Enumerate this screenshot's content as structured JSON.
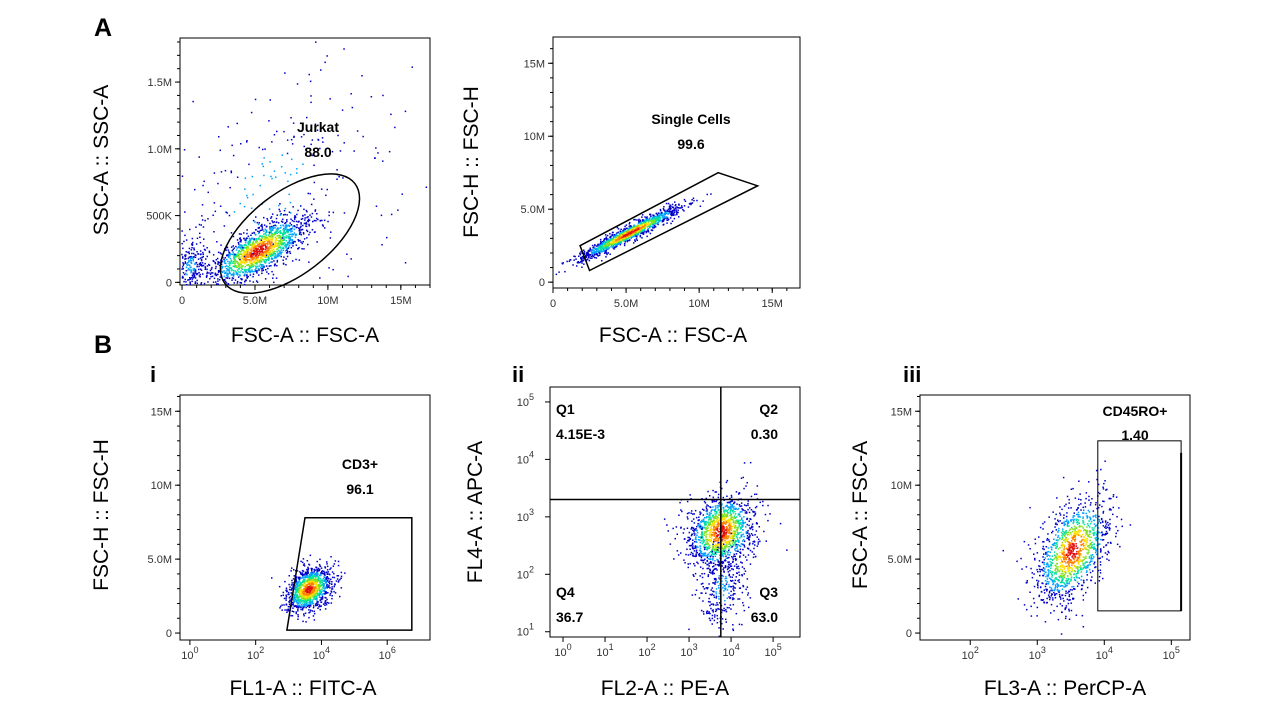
{
  "panels": {
    "A": "A",
    "B": "B",
    "i": "i",
    "ii": "ii",
    "iii": "iii"
  },
  "chart_data": [
    {
      "id": "A1",
      "type": "scatter",
      "xlabel": "FSC-A :: FSC-A",
      "ylabel": "SSC-A :: SSC-A",
      "x_scale": "linear",
      "y_scale": "linear",
      "x_unit": "M",
      "y_unit": "M",
      "xlim": [
        -0.14,
        17.0
      ],
      "ylim": [
        -0.02,
        1.83
      ],
      "xticks": [
        {
          "v": 0,
          "t": "0"
        },
        {
          "v": 5,
          "t": "5.0M"
        },
        {
          "v": 10,
          "t": "10M"
        },
        {
          "v": 15,
          "t": "15M"
        }
      ],
      "yticks": [
        {
          "v": 0,
          "t": "0"
        },
        {
          "v": 0.5,
          "t": "500K"
        },
        {
          "v": 1.0,
          "t": "1.0M"
        },
        {
          "v": 1.5,
          "t": "1.5M"
        }
      ],
      "gate": {
        "type": "ellipse",
        "axis_end_1": [
          2.95,
          -0.01
        ],
        "axis_end_2": [
          11.85,
          0.74
        ],
        "minor_ratio": 0.5,
        "name": "Jurkat",
        "value": "88.0"
      },
      "populations": [
        {
          "center": [
            5.2,
            0.24
          ],
          "sd": [
            1.7,
            0.13
          ],
          "corr": 0.72,
          "n": 1500
        },
        {
          "center": [
            0.5,
            0.12
          ],
          "sd": [
            0.6,
            0.12
          ],
          "corr": 0.3,
          "n": 250
        },
        {
          "center": [
            6.0,
            0.7
          ],
          "sd": [
            4.5,
            0.45
          ],
          "corr": 0.3,
          "n": 250
        }
      ]
    },
    {
      "id": "A2",
      "type": "scatter",
      "xlabel": "FSC-A :: FSC-A",
      "ylabel": "FSC-H :: FSC-H",
      "x_scale": "linear",
      "y_scale": "linear",
      "x_unit": "M",
      "y_unit": "M",
      "xlim": [
        0,
        16.9
      ],
      "ylim": [
        -0.4,
        16.8
      ],
      "xticks": [
        {
          "v": 0,
          "t": "0"
        },
        {
          "v": 5,
          "t": "5.0M"
        },
        {
          "v": 10,
          "t": "10M"
        },
        {
          "v": 15,
          "t": "15M"
        }
      ],
      "yticks": [
        {
          "v": 0,
          "t": "0"
        },
        {
          "v": 5,
          "t": "5.0M"
        },
        {
          "v": 10,
          "t": "10M"
        },
        {
          "v": 15,
          "t": "15M"
        }
      ],
      "gate": {
        "type": "polygon",
        "points": [
          [
            1.85,
            2.5
          ],
          [
            11.3,
            7.5
          ],
          [
            14.0,
            6.6
          ],
          [
            2.5,
            0.8
          ]
        ],
        "name": "Single Cells",
        "value": "99.6"
      },
      "populations": [
        {
          "center": [
            5.2,
            3.4
          ],
          "sd": [
            1.8,
            0.95
          ],
          "corr": 0.96,
          "n": 1200
        }
      ]
    },
    {
      "id": "Bi",
      "type": "scatter",
      "xlabel": "FL1-A :: FITC-A",
      "ylabel": "FSC-H :: FSC-H",
      "x_scale": "log",
      "y_scale": "linear",
      "y_unit": "M",
      "xlim": [
        0.5,
        20000000
      ],
      "ylim": [
        -0.47,
        16.1
      ],
      "xticks": [
        {
          "v": 1,
          "t": "10",
          "sup": "0"
        },
        {
          "v": 100,
          "t": "10",
          "sup": "2"
        },
        {
          "v": 10000,
          "t": "10",
          "sup": "4"
        },
        {
          "v": 1000000,
          "t": "10",
          "sup": "6"
        }
      ],
      "yticks": [
        {
          "v": 0,
          "t": "0"
        },
        {
          "v": 5,
          "t": "5.0M"
        },
        {
          "v": 10,
          "t": "10M"
        },
        {
          "v": 15,
          "t": "15M"
        }
      ],
      "gate": {
        "type": "polygon",
        "points": [
          [
            3160,
            7.8
          ],
          [
            5600000,
            7.8
          ],
          [
            5600000,
            0.2
          ],
          [
            890,
            0.2
          ]
        ],
        "name": "CD3+",
        "value": "96.1"
      },
      "populations": [
        {
          "center": [
            4000,
            3.0
          ],
          "sd_log10": 0.35,
          "sd": [
            0,
            0.75
          ],
          "corr": 0.35,
          "n": 1100
        }
      ]
    },
    {
      "id": "Bii",
      "type": "scatter",
      "xlabel": "FL2-A :: PE-A",
      "ylabel": "FL4-A :: APC-A",
      "x_scale": "log",
      "y_scale": "log",
      "xlim": [
        0.49,
        437000
      ],
      "ylim": [
        8.1,
        182000
      ],
      "xticks": [
        {
          "v": 1,
          "t": "10",
          "sup": "0"
        },
        {
          "v": 10,
          "t": "10",
          "sup": "1"
        },
        {
          "v": 100,
          "t": "10",
          "sup": "2"
        },
        {
          "v": 1000,
          "t": "10",
          "sup": "3"
        },
        {
          "v": 10000,
          "t": "10",
          "sup": "4"
        },
        {
          "v": 100000,
          "t": "10",
          "sup": "5"
        }
      ],
      "yticks": [
        {
          "v": 10,
          "t": "10",
          "sup": "1"
        },
        {
          "v": 100,
          "t": "10",
          "sup": "2"
        },
        {
          "v": 1000,
          "t": "10",
          "sup": "3"
        },
        {
          "v": 10000,
          "t": "10",
          "sup": "4"
        },
        {
          "v": 100000,
          "t": "10",
          "sup": "5"
        }
      ],
      "gate": {
        "type": "quadrant",
        "x": 5700,
        "y": 2000,
        "quadrants": [
          {
            "name": "Q1",
            "value": "4.15E-3"
          },
          {
            "name": "Q2",
            "value": "0.30"
          },
          {
            "name": "Q3",
            "value": "63.0"
          },
          {
            "name": "Q4",
            "value": "36.7"
          }
        ]
      },
      "populations": [
        {
          "center": [
            5600,
            560
          ],
          "sd_log10": [
            0.4,
            0.33
          ],
          "corr": 0.2,
          "n": 1300
        },
        {
          "center": [
            6000,
            60
          ],
          "sd_log10": [
            0.3,
            0.4
          ],
          "corr": 0,
          "n": 300
        }
      ]
    },
    {
      "id": "Biii",
      "type": "scatter",
      "xlabel": "FL3-A :: PerCP-A",
      "ylabel": "FSC-A :: FSC-A",
      "x_scale": "log",
      "y_scale": "linear",
      "y_unit": "M",
      "xlim": [
        17.8,
        190000
      ],
      "ylim": [
        -0.47,
        16.1
      ],
      "xticks": [
        {
          "v": 100,
          "t": "10",
          "sup": "2"
        },
        {
          "v": 1000,
          "t": "10",
          "sup": "3"
        },
        {
          "v": 10000,
          "t": "10",
          "sup": "4"
        },
        {
          "v": 100000,
          "t": "10",
          "sup": "5"
        }
      ],
      "yticks": [
        {
          "v": 0,
          "t": "0"
        },
        {
          "v": 5,
          "t": "5.0M"
        },
        {
          "v": 10,
          "t": "10M"
        },
        {
          "v": 15,
          "t": "15M"
        }
      ],
      "gate": {
        "type": "rect",
        "x": [
          8000,
          140000
        ],
        "y": [
          1.5,
          13.0
        ],
        "name": "CD45RO+",
        "value": "1.40"
      },
      "populations": [
        {
          "center": [
            3300,
            5.6
          ],
          "sd_log10": 0.28,
          "sd": [
            0,
            1.8
          ],
          "corr": 0.45,
          "n": 1200
        }
      ]
    }
  ],
  "colors": {
    "density": [
      "#0000c8",
      "#00a0ff",
      "#00e0a0",
      "#80e020",
      "#ffe000",
      "#ff8000",
      "#e01010"
    ],
    "gate": "#000000"
  }
}
